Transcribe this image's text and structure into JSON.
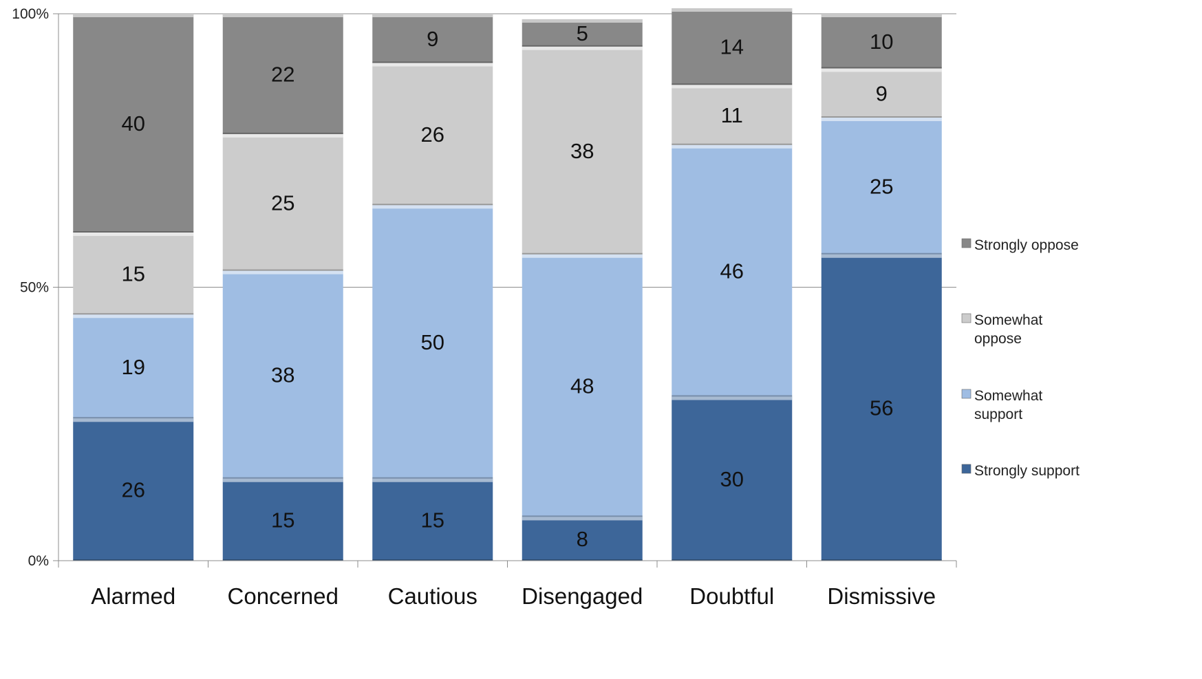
{
  "chart_data": {
    "type": "bar",
    "stacked": true,
    "percent_stacked": true,
    "categories": [
      "Alarmed",
      "Concerned",
      "Cautious",
      "Disengaged",
      "Doubtful",
      "Dismissive"
    ],
    "series": [
      {
        "name": "Strongly support",
        "values": [
          26,
          15,
          15,
          8,
          30,
          56
        ],
        "color": "#3d6699"
      },
      {
        "name": "Somewhat support",
        "values": [
          19,
          38,
          50,
          48,
          46,
          25
        ],
        "color": "#9fbde3"
      },
      {
        "name": "Somewhat oppose",
        "values": [
          15,
          25,
          26,
          38,
          11,
          9
        ],
        "color": "#cccccc"
      },
      {
        "name": "Strongly oppose",
        "values": [
          40,
          22,
          9,
          5,
          14,
          10
        ],
        "color": "#888888"
      }
    ],
    "legend_labels": [
      [
        "Strongly oppose"
      ],
      [
        "Somewhat",
        "oppose"
      ],
      [
        "Somewhat",
        "support"
      ],
      [
        "Strongly support"
      ]
    ],
    "yticks": [
      "0%",
      "50%",
      "100%"
    ],
    "ylim": [
      0,
      100
    ],
    "grid": true,
    "legend_position": "right"
  }
}
